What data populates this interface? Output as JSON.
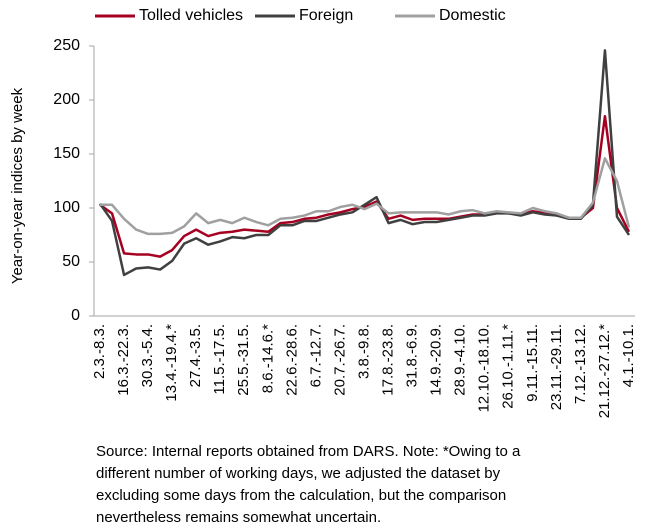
{
  "chart_data": {
    "type": "line",
    "ylabel": "Year-on-year indices by week",
    "categories": [
      "2.3.-8.3.",
      null,
      "16.3.-22.3.",
      null,
      "30.3.-5.4.",
      null,
      "13.4.-19.4.*",
      null,
      "27.4.-3.5.",
      null,
      "11.5.-17.5.",
      null,
      "25.5.-31.5.",
      null,
      "8.6.-14.6.*",
      null,
      "22.6.-28.6.",
      null,
      "6.7.-12.7.",
      null,
      "20.7.-26.7.",
      null,
      "3.8.-9.8.",
      null,
      "17.8.-23.8.",
      null,
      "31.8.-6.9.",
      null,
      "14.9.-20.9.",
      null,
      "28.9.-4.10.",
      null,
      "12.10.-18.10.",
      null,
      "26.10.-1.11.*",
      null,
      "9.11.-15.11.",
      null,
      "23.11.-29.11.",
      null,
      "7.12.-13.12.",
      null,
      "21.12.-27.12.*",
      null,
      "4.1.-10.1."
    ],
    "series": [
      {
        "name": "Tolled vehicles",
        "color": "#a50021",
        "values": [
          103,
          95,
          58,
          57,
          57,
          55,
          61,
          74,
          80,
          74,
          77,
          78,
          80,
          79,
          78,
          86,
          87,
          90,
          91,
          94,
          96,
          99,
          101,
          106,
          90,
          93,
          89,
          90,
          90,
          90,
          92,
          94,
          94,
          96,
          95,
          94,
          97,
          95,
          93,
          91,
          91,
          100,
          185,
          100,
          78
        ]
      },
      {
        "name": "Foreign",
        "color": "#404040",
        "values": [
          104,
          88,
          38,
          44,
          45,
          43,
          51,
          67,
          72,
          66,
          69,
          73,
          72,
          75,
          75,
          84,
          84,
          88,
          88,
          91,
          94,
          96,
          103,
          110,
          86,
          89,
          85,
          87,
          87,
          89,
          91,
          93,
          93,
          95,
          95,
          93,
          96,
          94,
          93,
          90,
          90,
          103,
          246,
          92,
          75
        ]
      },
      {
        "name": "Domestic",
        "color": "#a0a0a0",
        "values": [
          103,
          103,
          90,
          80,
          76,
          76,
          77,
          83,
          95,
          86,
          89,
          86,
          91,
          87,
          84,
          90,
          91,
          93,
          97,
          97,
          101,
          103,
          99,
          104,
          95,
          96,
          96,
          96,
          96,
          94,
          97,
          98,
          95,
          97,
          96,
          95,
          100,
          97,
          95,
          91,
          91,
          105,
          146,
          125,
          82
        ]
      }
    ],
    "ylim": [
      0,
      250
    ],
    "yticks": [
      0,
      50,
      100,
      150,
      200,
      250
    ],
    "grid": false,
    "legend": "top",
    "note": [
      "Source: Internal reports obtained from DARS. Note: *Owing to a",
      "different number of working days, we adjusted the dataset by",
      "excluding some days from the calculation, but the comparison",
      "nevertheless remains somewhat uncertain."
    ]
  }
}
